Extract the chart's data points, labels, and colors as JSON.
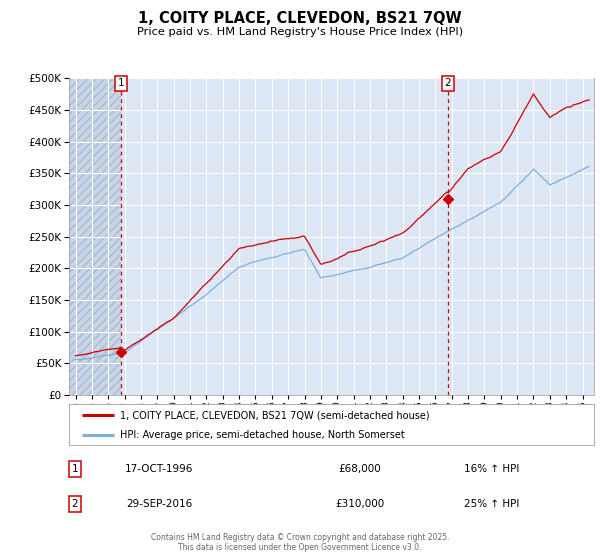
{
  "title": "1, COITY PLACE, CLEVEDON, BS21 7QW",
  "subtitle": "Price paid vs. HM Land Registry's House Price Index (HPI)",
  "legend_line1": "1, COITY PLACE, CLEVEDON, BS21 7QW (semi-detached house)",
  "legend_line2": "HPI: Average price, semi-detached house, North Somerset",
  "sale1_date": "17-OCT-1996",
  "sale1_price": "£68,000",
  "sale1_hpi": "16% ↑ HPI",
  "sale2_date": "29-SEP-2016",
  "sale2_price": "£310,000",
  "sale2_hpi": "25% ↑ HPI",
  "marker1_year": 1996.79,
  "marker1_value": 68000,
  "marker2_year": 2016.75,
  "marker2_value": 310000,
  "vline1_year": 1996.79,
  "vline2_year": 2016.75,
  "xmin": 1993.6,
  "xmax": 2025.7,
  "ymin": 0,
  "ymax": 500000,
  "yticks": [
    0,
    50000,
    100000,
    150000,
    200000,
    250000,
    300000,
    350000,
    400000,
    450000,
    500000
  ],
  "bg_color": "#dce6f5",
  "grid_color": "#ffffff",
  "line_color_red": "#cc0000",
  "line_color_blue": "#7aacdc",
  "footer_line1": "Contains HM Land Registry data © Crown copyright and database right 2025.",
  "footer_line2": "This data is licensed under the Open Government Licence v3.0."
}
